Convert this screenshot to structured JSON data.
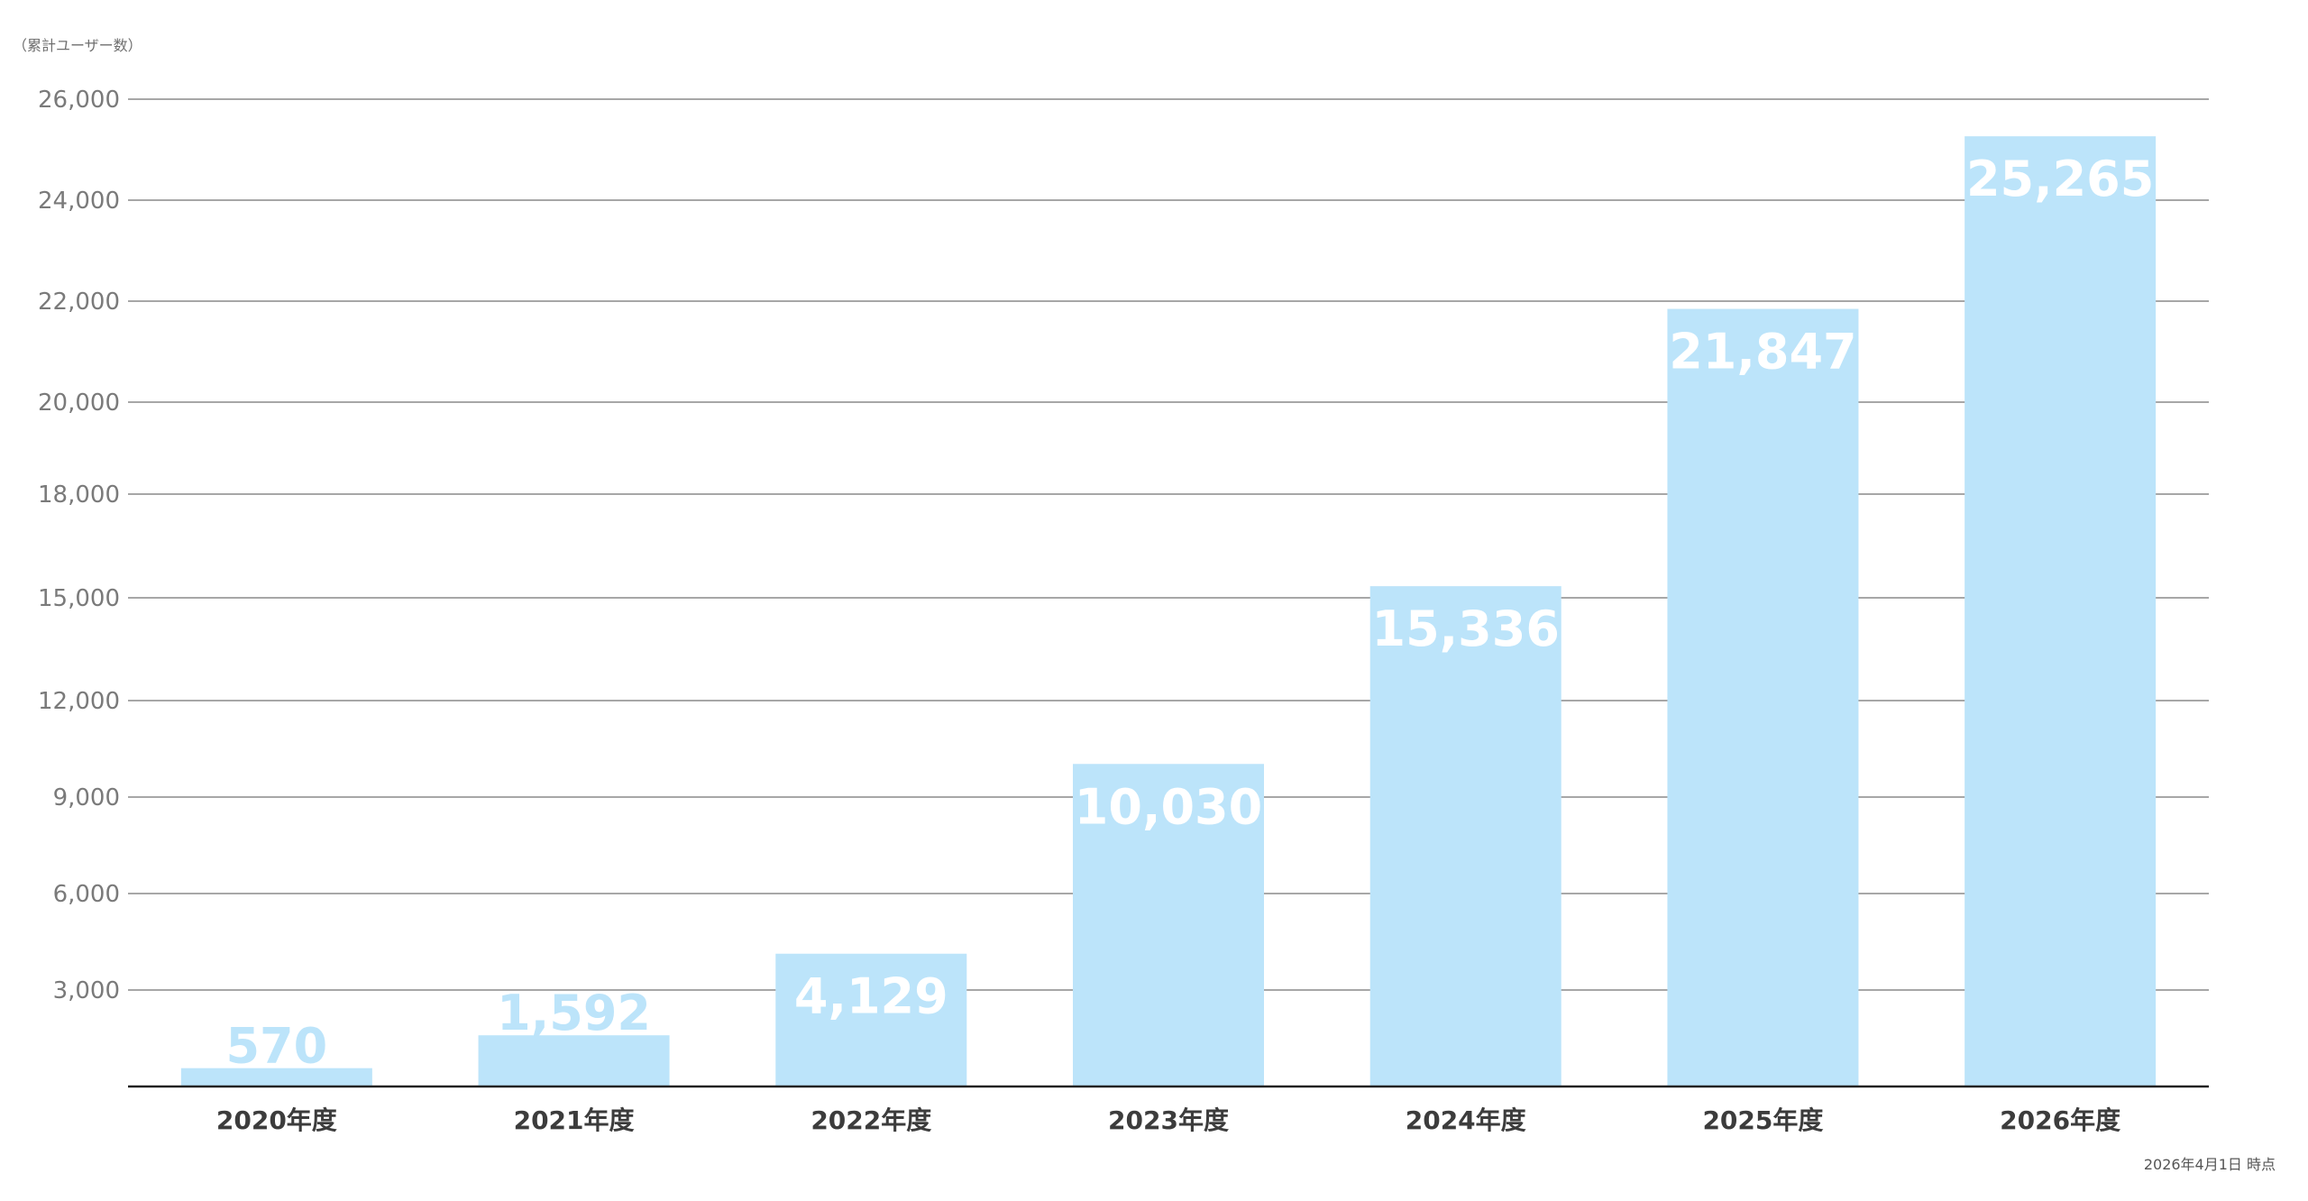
{
  "chart_data": {
    "type": "bar",
    "ylabel": "（累計ユーザー数）",
    "note": "2026年4月1日 時点",
    "categories": [
      "2020年度",
      "2021年度",
      "2022年度",
      "2023年度",
      "2024年度",
      "2025年度",
      "2026年度"
    ],
    "values": [
      570,
      1592,
      4129,
      10030,
      15336,
      21847,
      25265
    ],
    "value_labels": [
      "570",
      "1,592",
      "4,129",
      "10,030",
      "15,336",
      "21,847",
      "25,265"
    ],
    "yticks": [
      {
        "value": 3000,
        "label": "3,000"
      },
      {
        "value": 6000,
        "label": "6,000"
      },
      {
        "value": 9000,
        "label": "9,000"
      },
      {
        "value": 12000,
        "label": "12,000"
      },
      {
        "value": 15000,
        "label": "15,000"
      },
      {
        "value": 18000,
        "label": "18,000"
      },
      {
        "value": 20000,
        "label": "20,000"
      },
      {
        "value": 22000,
        "label": "22,000"
      },
      {
        "value": 24000,
        "label": "24,000"
      },
      {
        "value": 26000,
        "label": "26,000"
      }
    ],
    "ylim": [
      0,
      26000
    ],
    "grid": true,
    "legend": "none",
    "colors": {
      "bar": "#bce4fa",
      "bar_label_inside": "#ffffff",
      "gridline": "#8a8a8a",
      "axis": "#222222"
    }
  }
}
